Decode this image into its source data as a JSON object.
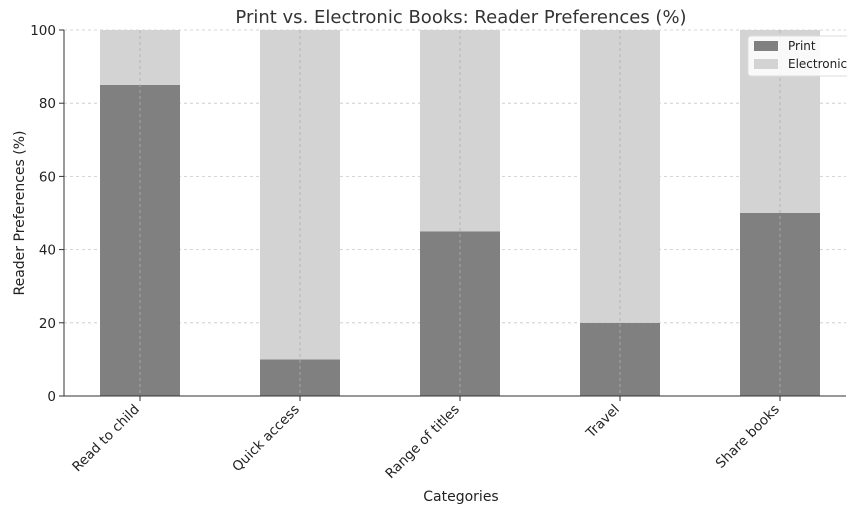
{
  "chart_data": {
    "type": "bar",
    "stacked": true,
    "title": "Print vs. Electronic Books: Reader Preferences (%)",
    "xlabel": "Categories",
    "ylabel": "Reader Preferences (%)",
    "categories": [
      "Read to child",
      "Quick access",
      "Range of titles",
      "Travel",
      "Share books"
    ],
    "series": [
      {
        "name": "Print",
        "values": [
          85,
          10,
          45,
          20,
          50
        ],
        "color": "#808080"
      },
      {
        "name": "Electronic",
        "values": [
          15,
          90,
          55,
          80,
          50
        ],
        "color": "#d3d3d3"
      }
    ],
    "ylim": [
      0,
      100
    ],
    "yticks": [
      0,
      20,
      40,
      60,
      80,
      100
    ],
    "grid": true,
    "legend_position": "top-right"
  }
}
